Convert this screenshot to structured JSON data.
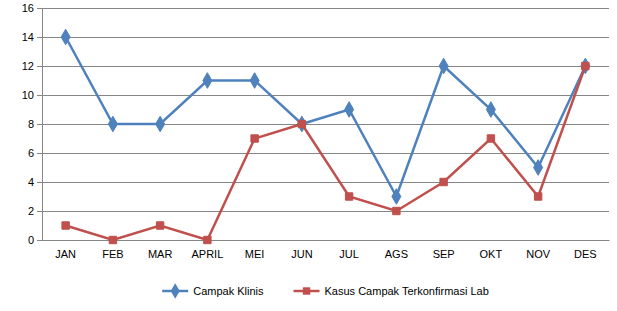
{
  "chart_data": {
    "type": "line",
    "categories": [
      "JAN",
      "FEB",
      "MAR",
      "APRIL",
      "MEI",
      "JUN",
      "JUL",
      "AGS",
      "SEP",
      "OKT",
      "NOV",
      "DES"
    ],
    "series": [
      {
        "name": "Campak Klinis",
        "color": "#4f81bd",
        "marker": "diamond",
        "values": [
          14,
          8,
          8,
          11,
          11,
          8,
          9,
          3,
          12,
          9,
          5,
          12
        ]
      },
      {
        "name": "Kasus Campak Terkonfirmasi Lab",
        "color": "#c0504d",
        "marker": "square",
        "values": [
          1,
          0,
          1,
          0,
          7,
          8,
          3,
          2,
          4,
          7,
          3,
          12
        ]
      }
    ],
    "ylim": [
      0,
      16
    ],
    "yticks": [
      0,
      2,
      4,
      6,
      8,
      10,
      12,
      14,
      16
    ],
    "grid": true,
    "legend": "bottom"
  }
}
